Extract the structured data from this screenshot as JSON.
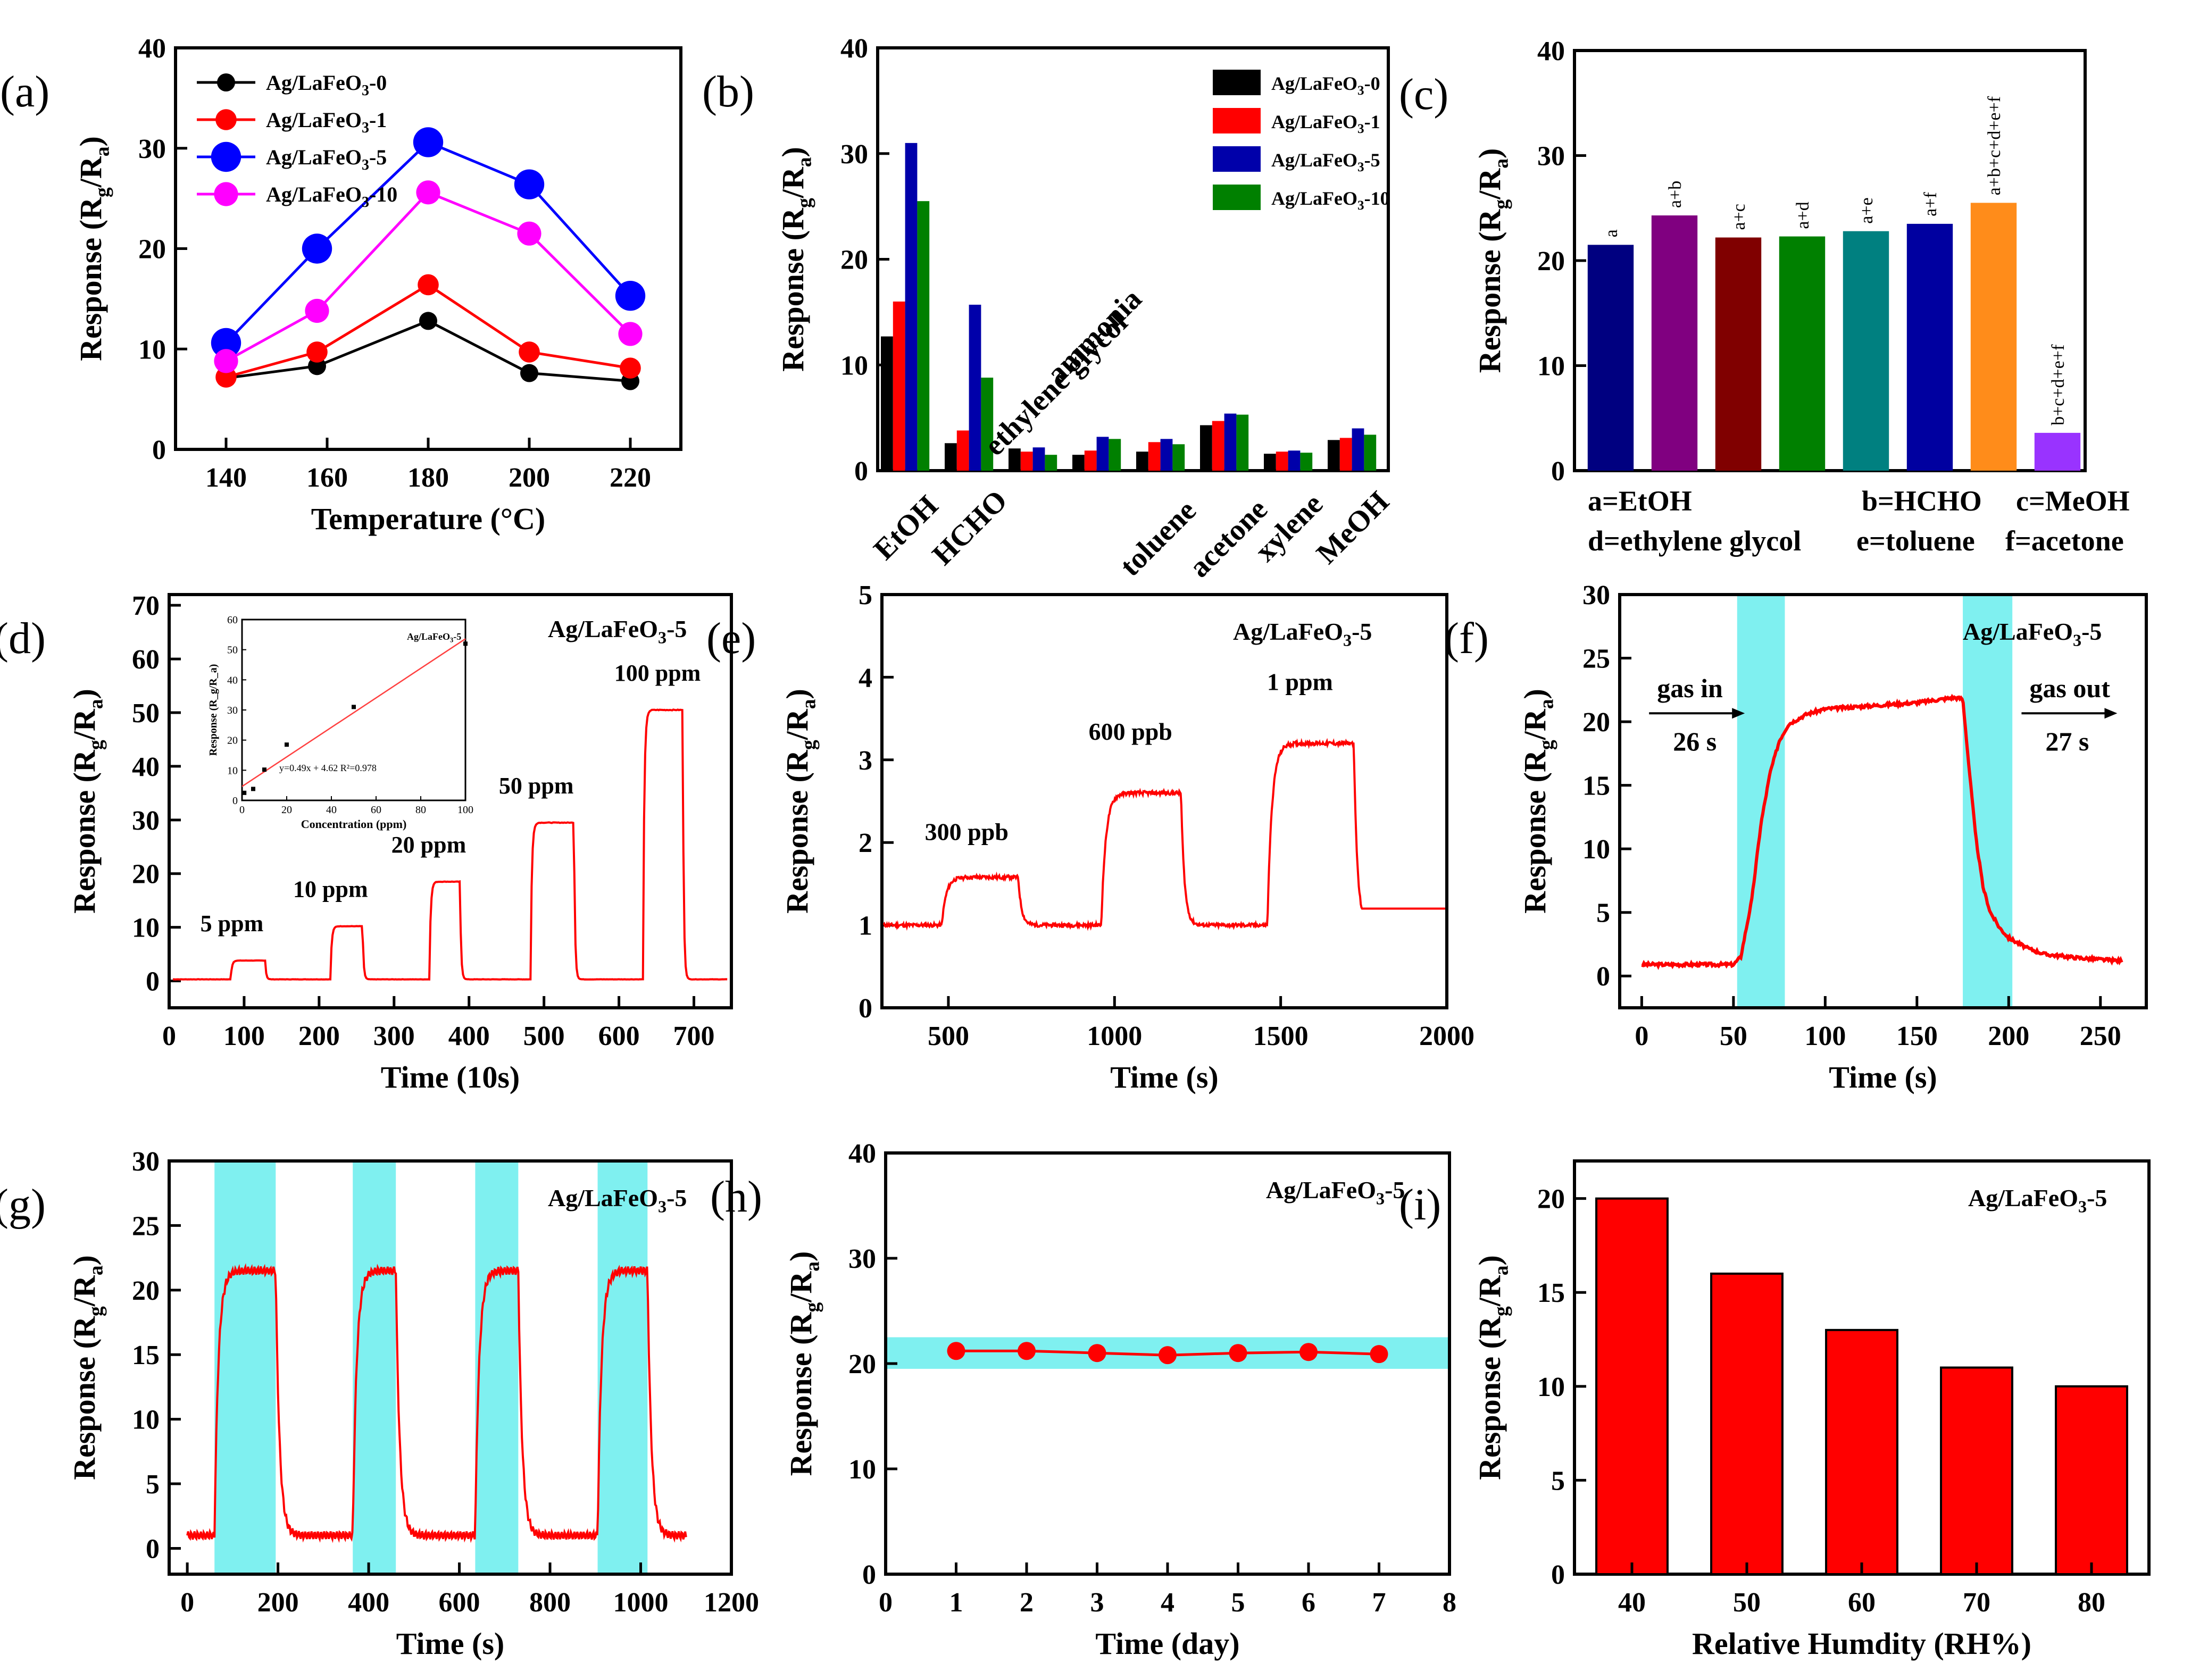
{
  "chart_data": [
    {
      "id": "a",
      "panel_label": "(a)",
      "type": "line",
      "xlabel": "Temperature (°C)",
      "ylabel": "Response (R_g/R_a)",
      "xlim": [
        130,
        230
      ],
      "ylim": [
        0,
        40
      ],
      "xticks": [
        140,
        160,
        180,
        200,
        220
      ],
      "yticks": [
        0,
        10,
        20,
        30,
        40
      ],
      "legend_position": "top-left",
      "series": [
        {
          "name": "Ag/LaFeO3-0",
          "color": "#000000",
          "marker_size": 1,
          "x": [
            140,
            158,
            180,
            200,
            220
          ],
          "y": [
            7.1,
            8.3,
            12.8,
            7.6,
            6.8
          ]
        },
        {
          "name": "Ag/LaFeO3-1",
          "color": "#ff0000",
          "marker_size": 1.2,
          "x": [
            140,
            158,
            180,
            200,
            220
          ],
          "y": [
            7.2,
            9.7,
            16.4,
            9.7,
            8.1
          ]
        },
        {
          "name": "Ag/LaFeO3-5",
          "color": "#0000ff",
          "marker_size": 1.8,
          "x": [
            140,
            158,
            180,
            200,
            220
          ],
          "y": [
            10.6,
            20.0,
            30.6,
            26.4,
            15.3
          ]
        },
        {
          "name": "Ag/LaFeO3-10",
          "color": "#ff00ff",
          "marker_size": 1.4,
          "x": [
            140,
            158,
            180,
            200,
            220
          ],
          "y": [
            8.8,
            13.8,
            25.6,
            21.5,
            11.5
          ]
        }
      ]
    },
    {
      "id": "b",
      "panel_label": "(b)",
      "type": "bar",
      "xlabel": "",
      "ylabel": "Response (R_g/R_a)",
      "ylim": [
        0,
        40
      ],
      "yticks": [
        0,
        10,
        20,
        30,
        40
      ],
      "legend_position": "top-right",
      "categories": [
        "EtOH",
        "HCHO",
        "ethylene glycol",
        "ammonia",
        "toluene",
        "acetone",
        "xylene",
        "MeOH"
      ],
      "series": [
        {
          "name": "Ag/LaFeO3-0",
          "color": "#000000",
          "values": [
            12.7,
            2.6,
            2.1,
            1.5,
            1.8,
            4.3,
            1.6,
            2.9
          ]
        },
        {
          "name": "Ag/LaFeO3-1",
          "color": "#ff0000",
          "values": [
            16.0,
            3.8,
            1.8,
            1.9,
            2.7,
            4.7,
            1.8,
            3.1
          ]
        },
        {
          "name": "Ag/LaFeO3-5",
          "color": "#0000aa",
          "values": [
            31.0,
            15.7,
            2.2,
            3.2,
            3.0,
            5.4,
            1.9,
            4.0
          ]
        },
        {
          "name": "Ag/LaFeO3-10",
          "color": "#008000",
          "values": [
            25.5,
            8.8,
            1.5,
            3.0,
            2.5,
            5.3,
            1.7,
            3.4
          ]
        }
      ]
    },
    {
      "id": "c",
      "panel_label": "(c)",
      "type": "bar",
      "ylabel": "Response (R_g/R_a)",
      "ylim": [
        0,
        40
      ],
      "yticks": [
        0,
        10,
        20,
        30,
        40
      ],
      "categories": [
        "a",
        "a+b",
        "a+c",
        "a+d",
        "a+e",
        "a+f",
        "a+b+c+d+e+f",
        "b+c+d+e+f"
      ],
      "values": [
        21.5,
        24.3,
        22.2,
        22.3,
        22.8,
        23.5,
        25.5,
        3.6
      ],
      "colors": [
        "#000080",
        "#800080",
        "#800000",
        "#008000",
        "#008080",
        "#0000a0",
        "#ff8c1a",
        "#9933ff"
      ],
      "key": [
        "a=EtOH",
        "b=HCHO",
        "c=MeOH",
        "d=ethylene glycol",
        "e=toluene",
        "f=acetone"
      ]
    },
    {
      "id": "d",
      "panel_label": "(d)",
      "type": "line",
      "xlabel": "Time (10s)",
      "ylabel": "Response (R_g/R_a)",
      "xlim": [
        0,
        750
      ],
      "ylim": [
        -5,
        72
      ],
      "xticks": [
        0,
        100,
        200,
        300,
        400,
        500,
        600,
        700
      ],
      "yticks": [
        0,
        10,
        20,
        30,
        40,
        50,
        60,
        70
      ],
      "sample_label": "Ag/LaFeO3-5",
      "pulses": [
        {
          "label": "5 ppm",
          "start": 82,
          "end": 128,
          "level": 3.8
        },
        {
          "label": "10 ppm",
          "start": 215,
          "end": 258,
          "level": 10.2
        },
        {
          "label": "20 ppm",
          "start": 347,
          "end": 388,
          "level": 18.5
        },
        {
          "label": "50 ppm",
          "start": 482,
          "end": 540,
          "level": 29.5
        },
        {
          "label": "100 ppm",
          "start": 632,
          "end": 685,
          "level": 50.5
        }
      ],
      "baseline": 0.3,
      "inset": {
        "xlabel": "Concentration (ppm)",
        "ylabel": "Response (R_g/R_a)",
        "xlim": [
          0,
          100
        ],
        "ylim": [
          0,
          60
        ],
        "xticks": [
          0,
          20,
          40,
          60,
          80,
          100
        ],
        "yticks": [
          0,
          10,
          20,
          30,
          40,
          50,
          60
        ],
        "x": [
          1,
          5,
          10,
          20,
          50,
          100
        ],
        "y": [
          2.5,
          3.8,
          10.2,
          18.5,
          31,
          52
        ],
        "fit_label": "y=0.49x + 4.62   R²=0.978",
        "legend": "Ag/LaFeO3-5",
        "fit": {
          "slope": 0.49,
          "intercept": 4.62
        }
      }
    },
    {
      "id": "e",
      "panel_label": "(e)",
      "type": "line",
      "xlabel": "Time (s)",
      "ylabel": "Response (R_g/R_a)",
      "xlim": [
        300,
        2000
      ],
      "ylim": [
        0,
        5
      ],
      "xticks": [
        500,
        1000,
        1500,
        2000
      ],
      "yticks": [
        0,
        1,
        2,
        3,
        4,
        5
      ],
      "sample_label": "Ag/LaFeO3-5",
      "pulses": [
        {
          "label": "300 ppb",
          "start": 480,
          "end": 710,
          "level": 1.58
        },
        {
          "label": "600 ppb",
          "start": 960,
          "end": 1200,
          "level": 2.6
        },
        {
          "label": "1 ppm",
          "start": 1460,
          "end": 1720,
          "level": 3.2
        }
      ],
      "baseline": 1.0
    },
    {
      "id": "f",
      "panel_label": "(f)",
      "type": "line",
      "xlabel": "Time (s)",
      "ylabel": "Response (R_g/R_a)",
      "xlim": [
        -12,
        275
      ],
      "ylim": [
        -2.5,
        30
      ],
      "xticks": [
        0,
        50,
        100,
        150,
        200,
        250
      ],
      "yticks": [
        0,
        5,
        10,
        15,
        20,
        25,
        30
      ],
      "sample_label": "Ag/LaFeO3-5",
      "highlight_spans": [
        [
          52,
          78
        ],
        [
          175,
          202
        ]
      ],
      "annotations": [
        {
          "text": "gas in",
          "sub": "26 s",
          "arrow": "right",
          "x": 4,
          "y": 21.5
        },
        {
          "text": "gas out",
          "sub": "27 s",
          "arrow": "right",
          "x": 207,
          "y": 21.5
        }
      ],
      "series": {
        "x": [
          0,
          50,
          54,
          60,
          65,
          70,
          75,
          80,
          90,
          100,
          120,
          150,
          170,
          175,
          178,
          182,
          186,
          190,
          195,
          200,
          210,
          220,
          240,
          260
        ],
        "y": [
          0.9,
          0.9,
          1.5,
          6,
          12,
          16,
          18.5,
          19.8,
          20.6,
          21,
          21.2,
          21.5,
          21.9,
          21.8,
          17,
          11,
          7,
          5,
          3.8,
          3,
          2.2,
          1.7,
          1.4,
          1.2
        ]
      }
    },
    {
      "id": "g",
      "panel_label": "(g)",
      "type": "line",
      "xlabel": "Time (s)",
      "ylabel": "Response (R_g/R_a)",
      "xlim": [
        -40,
        1200
      ],
      "ylim": [
        -2,
        30
      ],
      "xticks": [
        0,
        200,
        400,
        600,
        800,
        1000,
        1200
      ],
      "yticks": [
        0,
        5,
        10,
        15,
        20,
        25,
        30
      ],
      "sample_label": "Ag/LaFeO3-5",
      "highlight_spans": [
        [
          60,
          195
        ],
        [
          365,
          460
        ],
        [
          635,
          730
        ],
        [
          905,
          1015
        ]
      ],
      "cycles": [
        [
          60,
          195
        ],
        [
          365,
          460
        ],
        [
          635,
          730
        ],
        [
          905,
          1015
        ]
      ],
      "baseline": 1.0,
      "level": 21.5
    },
    {
      "id": "h",
      "panel_label": "(h)",
      "type": "line",
      "xlabel": "Time (day)",
      "ylabel": "Response (R_g/R_a)",
      "xlim": [
        0,
        8
      ],
      "ylim": [
        0,
        40
      ],
      "xticks": [
        0,
        1,
        2,
        3,
        4,
        5,
        6,
        7,
        8
      ],
      "yticks": [
        0,
        10,
        20,
        30,
        40
      ],
      "sample_label": "Ag/LaFeO3-5",
      "band": [
        19.5,
        22.5
      ],
      "x": [
        1,
        2,
        3,
        4,
        5,
        6,
        7
      ],
      "y": [
        21.2,
        21.2,
        21.0,
        20.8,
        21.0,
        21.1,
        20.9
      ]
    },
    {
      "id": "i",
      "panel_label": "(i)",
      "type": "bar",
      "xlabel": "Relative Humdity (RH%)",
      "ylabel": "Response (R_g/R_a)",
      "ylim": [
        0,
        22
      ],
      "yticks": [
        0,
        5,
        10,
        15,
        20
      ],
      "sample_label": "Ag/LaFeO3-5",
      "categories": [
        "40",
        "50",
        "60",
        "70",
        "80"
      ],
      "values": [
        20,
        16,
        13,
        11,
        10
      ],
      "color": "#ff0000"
    }
  ]
}
